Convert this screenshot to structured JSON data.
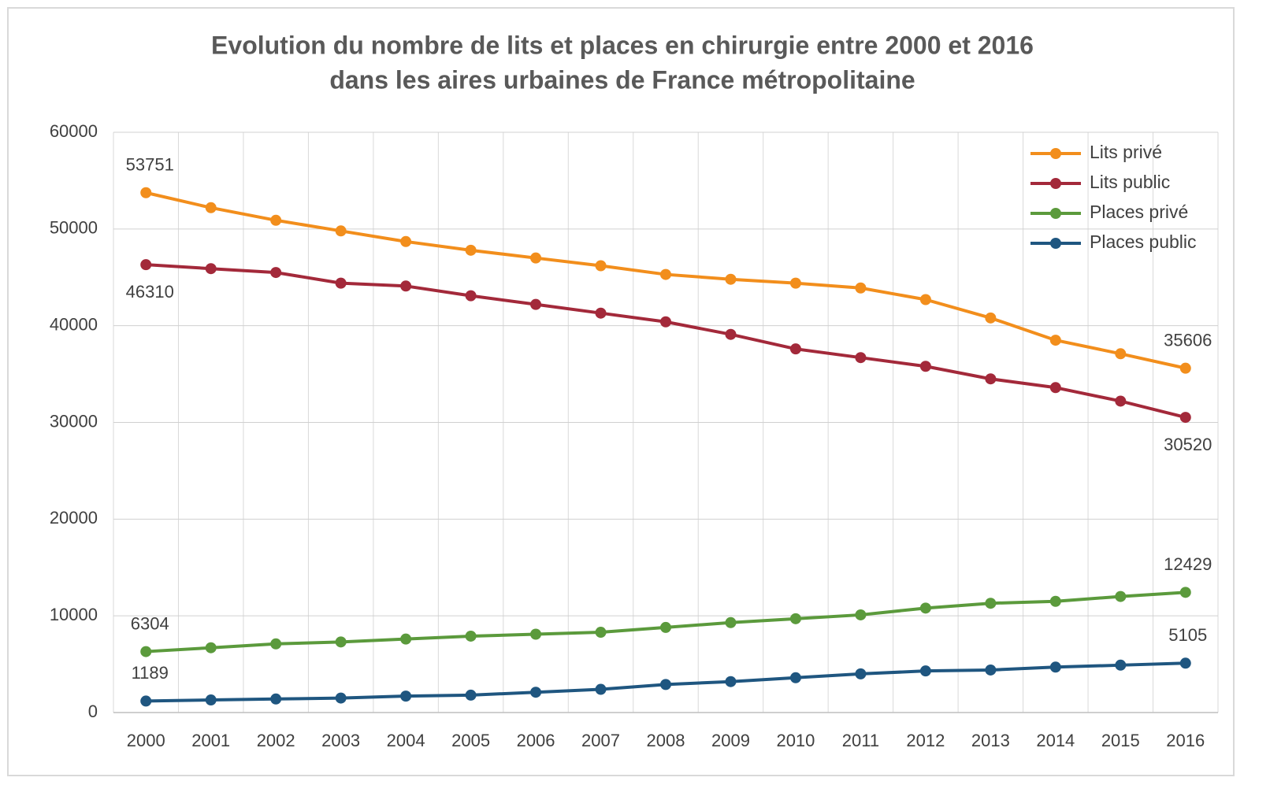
{
  "chart_data": {
    "type": "line",
    "title": [
      "Evolution du nombre de lits et places en chirurgie entre 2000 et 2016",
      "dans les aires urbaines de France métropolitaine"
    ],
    "categories": [
      "2000",
      "2001",
      "2002",
      "2003",
      "2004",
      "2005",
      "2006",
      "2007",
      "2008",
      "2009",
      "2010",
      "2011",
      "2012",
      "2013",
      "2014",
      "2015",
      "2016"
    ],
    "series": [
      {
        "name": "Lits privé",
        "color": "#f28e1c",
        "label_position": "above",
        "values": [
          53751,
          52200,
          50900,
          49800,
          48700,
          47800,
          47000,
          46200,
          45300,
          44800,
          44400,
          43900,
          42700,
          40800,
          38500,
          37100,
          35606
        ]
      },
      {
        "name": "Lits public",
        "color": "#a3293a",
        "label_position": "below",
        "values": [
          46310,
          45900,
          45500,
          44400,
          44100,
          43100,
          42200,
          41300,
          40400,
          39100,
          37600,
          36700,
          35800,
          34500,
          33600,
          32200,
          30520
        ]
      },
      {
        "name": "Places privé",
        "color": "#5b9a3c",
        "label_position": "above",
        "values": [
          6304,
          6700,
          7100,
          7300,
          7600,
          7900,
          8100,
          8300,
          8800,
          9300,
          9700,
          10100,
          10800,
          11300,
          11500,
          12000,
          12429
        ]
      },
      {
        "name": "Places public",
        "color": "#1f5680",
        "label_position": "above",
        "values": [
          1189,
          1300,
          1400,
          1500,
          1700,
          1800,
          2100,
          2400,
          2900,
          3200,
          3600,
          4000,
          4300,
          4400,
          4700,
          4900,
          5105
        ]
      }
    ],
    "data_labels": "ends",
    "ylim": [
      0,
      60000
    ],
    "yticks": [
      0,
      10000,
      20000,
      30000,
      40000,
      50000,
      60000
    ],
    "grid": true,
    "legend": "top-right"
  }
}
